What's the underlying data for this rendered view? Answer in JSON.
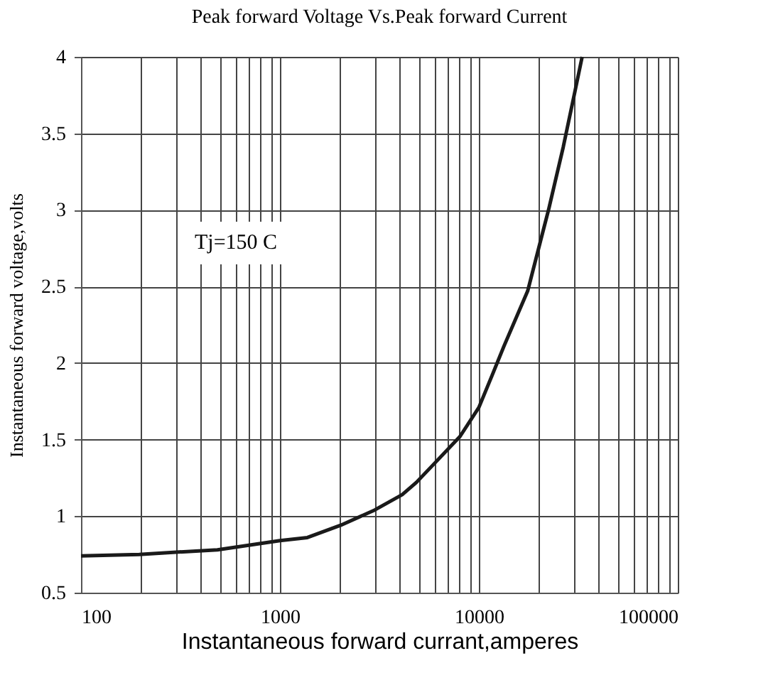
{
  "chart_data": {
    "type": "line",
    "title": "Peak forward Voltage Vs.Peak forward Current",
    "xlabel": "Instantaneous forward currant,amperes",
    "ylabel": "Instantaneous forward voltage,volts",
    "annotations": [
      "Tj=150 C"
    ],
    "x": [
      100,
      196,
      485,
      1000,
      1374,
      2018,
      2995,
      4115,
      4850,
      6040,
      8035,
      10000,
      11660,
      13370,
      17590,
      22490,
      26550,
      30470,
      33050
    ],
    "series": [
      {
        "color": "#1a1a1a",
        "values": [
          0.74,
          0.75,
          0.78,
          0.84,
          0.86,
          0.94,
          1.04,
          1.14,
          1.22,
          1.35,
          1.52,
          1.71,
          1.92,
          2.11,
          2.47,
          3.01,
          3.41,
          3.78,
          4.0
        ]
      }
    ],
    "xlim": [
      100,
      100000
    ],
    "xticks": [
      100,
      1000,
      10000,
      100000
    ],
    "ylim": [
      0.5,
      4
    ],
    "yticks": [
      0.5,
      1,
      1.5,
      2,
      2.5,
      3,
      3.5,
      4
    ],
    "log": "x",
    "grid": true,
    "marker": "none",
    "line_style": "solid"
  }
}
